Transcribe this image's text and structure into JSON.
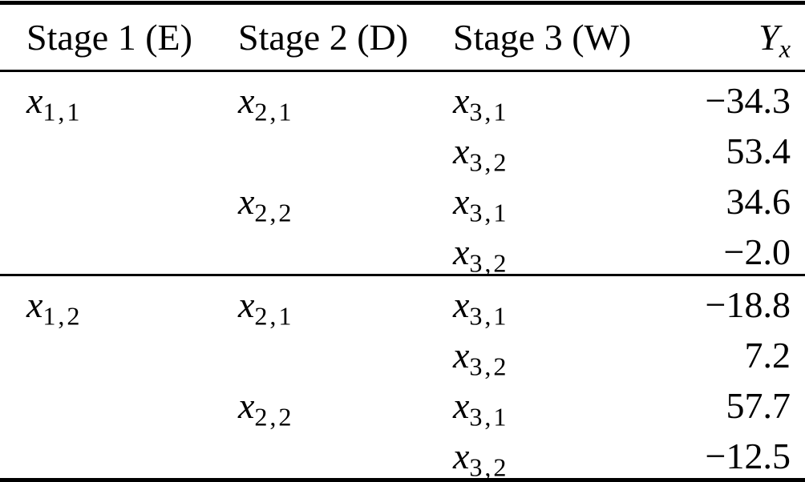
{
  "page": {
    "background": "#ffffff",
    "text_color": "#000000"
  },
  "table": {
    "header": {
      "col1": "Stage 1 (E)",
      "col2": "Stage 2 (D)",
      "col3": "Stage 3 (W)",
      "col4_base": "Y",
      "col4_sub": "x"
    },
    "groups": [
      {
        "rows": [
          {
            "stage1": {
              "var": "x",
              "sub": "1,1"
            },
            "stage2": {
              "var": "x",
              "sub": "2,1"
            },
            "stage3": {
              "var": "x",
              "sub": "3,1"
            },
            "value": "−34.3"
          },
          {
            "stage1": null,
            "stage2": null,
            "stage3": {
              "var": "x",
              "sub": "3,2"
            },
            "value": "53.4"
          },
          {
            "stage1": null,
            "stage2": {
              "var": "x",
              "sub": "2,2"
            },
            "stage3": {
              "var": "x",
              "sub": "3,1"
            },
            "value": "34.6"
          },
          {
            "stage1": null,
            "stage2": null,
            "stage3": {
              "var": "x",
              "sub": "3,2"
            },
            "value": "−2.0"
          }
        ]
      },
      {
        "rows": [
          {
            "stage1": {
              "var": "x",
              "sub": "1,2"
            },
            "stage2": {
              "var": "x",
              "sub": "2,1"
            },
            "stage3": {
              "var": "x",
              "sub": "3,1"
            },
            "value": "−18.8"
          },
          {
            "stage1": null,
            "stage2": null,
            "stage3": {
              "var": "x",
              "sub": "3,2"
            },
            "value": "7.2"
          },
          {
            "stage1": null,
            "stage2": {
              "var": "x",
              "sub": "2,2"
            },
            "stage3": {
              "var": "x",
              "sub": "3,1"
            },
            "value": "57.7"
          },
          {
            "stage1": null,
            "stage2": null,
            "stage3": {
              "var": "x",
              "sub": "3,2"
            },
            "value": "−12.5"
          }
        ]
      }
    ]
  },
  "chart_data": {
    "type": "table",
    "columns": [
      "Stage 1 (E)",
      "Stage 2 (D)",
      "Stage 3 (W)",
      "Y_x"
    ],
    "rows": [
      [
        "x_{1,1}",
        "x_{2,1}",
        "x_{3,1}",
        -34.3
      ],
      [
        "",
        "",
        "x_{3,2}",
        53.4
      ],
      [
        "",
        "x_{2,2}",
        "x_{3,1}",
        34.6
      ],
      [
        "",
        "",
        "x_{3,2}",
        -2.0
      ],
      [
        "x_{1,2}",
        "x_{2,1}",
        "x_{3,1}",
        -18.8
      ],
      [
        "",
        "",
        "x_{3,2}",
        7.2
      ],
      [
        "",
        "x_{2,2}",
        "x_{3,1}",
        57.7
      ],
      [
        "",
        "",
        "x_{3,2}",
        -12.5
      ]
    ]
  }
}
